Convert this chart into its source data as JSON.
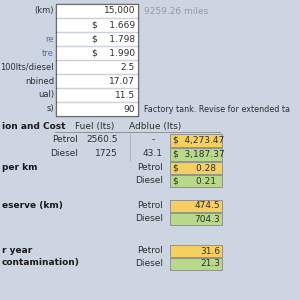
{
  "bg_color": "#cdd5e3",
  "top_table": {
    "value_col": [
      "15,000",
      "$    1.669",
      "$    1.798",
      "$    1.990",
      "2.5",
      "17.07",
      "11.5",
      "90"
    ],
    "left_labels": [
      "(km)",
      "",
      "re",
      "tre",
      "100lts/diesel",
      "nbined",
      "ual)",
      "s)"
    ],
    "left_label_colors": [
      "#2f2f2f",
      "#2f2f2f",
      "#4472c4",
      "#4472c4",
      "#2f2f2f",
      "#2f2f2f",
      "#2f2f2f",
      "#2f2f2f"
    ],
    "right_note": "9259.26 miles",
    "right_note2": "Factory tank. Revise for extended ta"
  },
  "section_title": "ion and Cost",
  "col_headers": [
    "Fuel (lts)",
    "Adblue (lts)"
  ],
  "rows": [
    {
      "label": "Petrol",
      "fuel": "2560.5",
      "adblue": "-",
      "cost": "$  4,273.47",
      "cost_color": "#f5d060"
    },
    {
      "label": "Diesel",
      "fuel": "1725",
      "adblue": "43.1",
      "cost": "$  3,187.37",
      "cost_color": "#b8d98a"
    }
  ],
  "per_km_label": "per km",
  "per_km_rows": [
    {
      "label": "Petrol",
      "value": "$      0.28",
      "color": "#f5d060"
    },
    {
      "label": "Diesel",
      "value": "$      0.21",
      "color": "#b8d98a"
    }
  ],
  "reserve_label": "eserve (km)",
  "reserve_rows": [
    {
      "label": "Petrol",
      "value": "474.5",
      "color": "#f5d060"
    },
    {
      "label": "Diesel",
      "value": "704.3",
      "color": "#b8d98a"
    }
  ],
  "year_label": "r year",
  "year_label2": "contamination)",
  "year_rows": [
    {
      "label": "Petrol",
      "value": "31.6",
      "color": "#f5d060"
    },
    {
      "label": "Diesel",
      "value": "21.3",
      "color": "#b8d98a"
    }
  ],
  "link_color": "#4472c4",
  "text_color": "#2f2f2f",
  "bold_color": "#1a1a1a"
}
